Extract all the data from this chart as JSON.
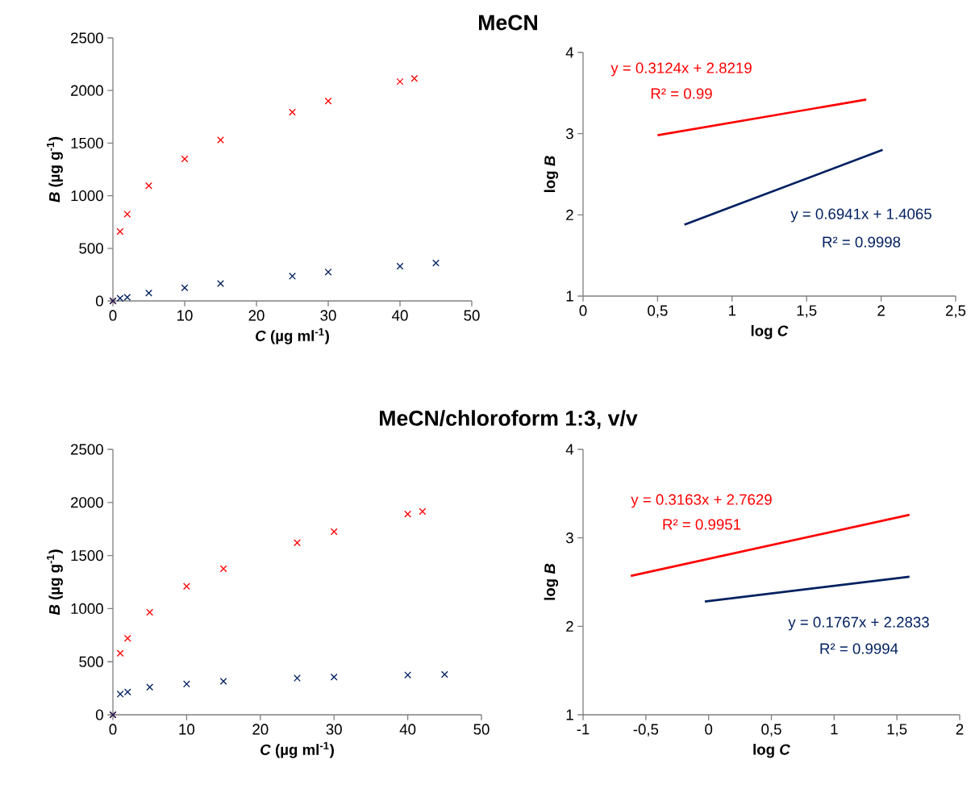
{
  "chart_data": [
    {
      "type": "scatter",
      "title": "MeCN",
      "xlabel": "*C* (µg ml$^{-1}$)",
      "ylabel": "*B* (µg g$^{-1}$)",
      "xlim": [
        0,
        50
      ],
      "ylim": [
        0,
        2500
      ],
      "xticks": [
        0,
        10,
        20,
        30,
        40,
        50
      ],
      "yticks": [
        0,
        500,
        1000,
        1500,
        2000,
        2500
      ],
      "grid": false,
      "series": [
        {
          "color": "#ff0000",
          "marker": "cross",
          "x": [
            0,
            1,
            2,
            5,
            10,
            15,
            25,
            30,
            40,
            42
          ],
          "values": [
            0,
            660,
            825,
            1095,
            1350,
            1530,
            1795,
            1900,
            2085,
            2115
          ]
        },
        {
          "color": "#002060",
          "marker": "cross",
          "x": [
            0,
            1,
            2,
            5,
            10,
            15,
            25,
            30,
            40,
            45
          ],
          "values": [
            0,
            25,
            35,
            75,
            125,
            165,
            235,
            275,
            330,
            360
          ]
        }
      ]
    },
    {
      "type": "line",
      "xlabel": "log *C*",
      "ylabel": "log *B*",
      "xlim": [
        0,
        2.5
      ],
      "ylim": [
        1,
        4
      ],
      "xticks": [
        0,
        {
          "value": 0.5,
          "label": "0,5"
        },
        1,
        {
          "value": 1.5,
          "label": "1,5"
        },
        2,
        {
          "value": 2.5,
          "label": "2,5"
        }
      ],
      "yticks": [
        1,
        2,
        3,
        4
      ],
      "grid": false,
      "annotations": [
        "y = 0.3124x  + 2.8219",
        "R² = 0.99",
        "y = 0.6941x  + 1.4065",
        "R² = 0.9998"
      ],
      "series": [
        {
          "color": "#ff0000",
          "x": [
            0.5,
            1.9
          ],
          "values": [
            2.98,
            3.42
          ]
        },
        {
          "color": "#002060",
          "x": [
            0.68,
            2.01
          ],
          "values": [
            1.88,
            2.8
          ]
        }
      ]
    },
    {
      "type": "scatter",
      "title": "MeCN/chloroform 1:3, v/v",
      "xlabel": "*C* (µg ml$^{-1}$)",
      "ylabel": "*B* (µg g$^{-1}$)",
      "xlim": [
        0,
        50
      ],
      "ylim": [
        0,
        2500
      ],
      "xticks": [
        0,
        10,
        20,
        30,
        40,
        50
      ],
      "yticks": [
        0,
        500,
        1000,
        1500,
        2000,
        2500
      ],
      "grid": false,
      "series": [
        {
          "color": "#ff0000",
          "marker": "cross",
          "x": [
            0,
            1,
            2,
            5,
            10,
            15,
            25,
            30,
            40,
            42
          ],
          "values": [
            0,
            580,
            720,
            965,
            1210,
            1375,
            1620,
            1725,
            1890,
            1915
          ]
        },
        {
          "color": "#002060",
          "marker": "cross",
          "x": [
            0,
            1,
            2,
            5,
            10,
            15,
            25,
            30,
            40,
            45
          ],
          "values": [
            0,
            195,
            215,
            260,
            290,
            315,
            345,
            355,
            375,
            380
          ]
        }
      ]
    },
    {
      "type": "line",
      "xlabel": "log *C*",
      "ylabel": "log *B*",
      "xlim": [
        -1,
        2
      ],
      "ylim": [
        1,
        4
      ],
      "xticks": [
        -1,
        {
          "value": -0.5,
          "label": "-0,5"
        },
        0,
        {
          "value": 0.5,
          "label": "0,5"
        },
        1,
        {
          "value": 1.5,
          "label": "1,5"
        },
        2
      ],
      "yticks": [
        1,
        2,
        3,
        4
      ],
      "grid": false,
      "annotations": [
        "y = 0.3163x  + 2.7629",
        "R² = 0.9951",
        "y = 0.1767x  + 2.2833",
        "R² = 0.9994"
      ],
      "series": [
        {
          "color": "#ff0000",
          "x": [
            -0.62,
            1.6
          ],
          "values": [
            2.57,
            3.26
          ]
        },
        {
          "color": "#002060",
          "x": [
            -0.03,
            1.6
          ],
          "values": [
            2.28,
            2.56
          ]
        }
      ]
    }
  ]
}
